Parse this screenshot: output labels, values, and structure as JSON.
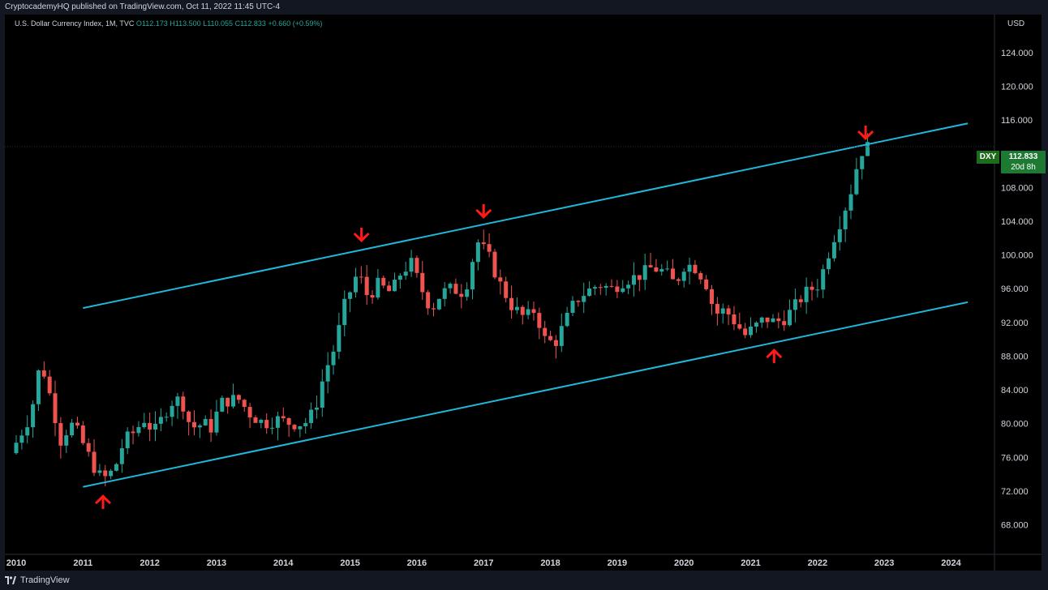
{
  "header": {
    "publisher_line": "CryptocademyHQ published on TradingView.com, Oct 11, 2022 11:45 UTC-4"
  },
  "legend": {
    "symbol": "U.S. Dollar Currency Index, 1M, TVC",
    "open": "O112.173",
    "high": "H113.500",
    "low": "L110.055",
    "close": "C112.833",
    "change": "+0.660 (+0.59%)"
  },
  "price_axis": {
    "currency": "USD"
  },
  "last_price": {
    "symbol": "DXY",
    "price": "112.833",
    "countdown": "20d 8h"
  },
  "footer": {
    "brand": "TradingView"
  },
  "colors": {
    "up": "#26a69a",
    "down": "#ef5350",
    "channel": "#1fb8d8",
    "arrow": "#ff1a1a",
    "axis_text": "#d1d4dc"
  },
  "chart_data": {
    "type": "candlestick",
    "title": "U.S. Dollar Currency Index, 1M, TVC",
    "x_tick_labels": [
      "2010",
      "2011",
      "2012",
      "2013",
      "2014",
      "2015",
      "2016",
      "2017",
      "2018",
      "2019",
      "2020",
      "2021",
      "2022",
      "2023",
      "2024"
    ],
    "y_tick_labels": [
      "68.000",
      "72.000",
      "76.000",
      "80.000",
      "84.000",
      "88.000",
      "92.000",
      "96.000",
      "100.000",
      "104.000",
      "108.000",
      "112.000",
      "116.000",
      "120.000",
      "124.000"
    ],
    "ylim": [
      64.5,
      128.5
    ],
    "x_range": [
      2009.83,
      2024.65
    ],
    "series_path": [
      [
        2010.0,
        76.5
      ],
      [
        2010.3,
        81
      ],
      [
        2010.45,
        87.5
      ],
      [
        2010.6,
        83
      ],
      [
        2010.75,
        78
      ],
      [
        2010.9,
        80
      ],
      [
        2011.0,
        79
      ],
      [
        2011.15,
        76.5
      ],
      [
        2011.3,
        74
      ],
      [
        2011.4,
        73.5
      ],
      [
        2011.55,
        74.5
      ],
      [
        2011.7,
        78
      ],
      [
        2011.85,
        79
      ],
      [
        2012.0,
        80.5
      ],
      [
        2012.15,
        79
      ],
      [
        2012.4,
        82.5
      ],
      [
        2012.55,
        83
      ],
      [
        2012.7,
        79.5
      ],
      [
        2012.9,
        80
      ],
      [
        2013.0,
        79.5
      ],
      [
        2013.15,
        82.5
      ],
      [
        2013.4,
        83
      ],
      [
        2013.6,
        81
      ],
      [
        2013.8,
        80
      ],
      [
        2014.0,
        80.5
      ],
      [
        2014.2,
        80
      ],
      [
        2014.4,
        80
      ],
      [
        2014.55,
        81.5
      ],
      [
        2014.7,
        86
      ],
      [
        2014.85,
        89
      ],
      [
        2015.0,
        94
      ],
      [
        2015.2,
        98
      ],
      [
        2015.35,
        95
      ],
      [
        2015.5,
        96.5
      ],
      [
        2015.7,
        95.5
      ],
      [
        2015.85,
        98
      ],
      [
        2016.0,
        99
      ],
      [
        2016.15,
        96
      ],
      [
        2016.3,
        93.5
      ],
      [
        2016.45,
        95.5
      ],
      [
        2016.6,
        96
      ],
      [
        2016.8,
        95.5
      ],
      [
        2016.9,
        99
      ],
      [
        2017.0,
        101.5
      ],
      [
        2017.15,
        100
      ],
      [
        2017.3,
        97
      ],
      [
        2017.5,
        94
      ],
      [
        2017.7,
        92.5
      ],
      [
        2017.85,
        93.5
      ],
      [
        2018.0,
        90
      ],
      [
        2018.15,
        89.5
      ],
      [
        2018.3,
        92
      ],
      [
        2018.45,
        94.5
      ],
      [
        2018.6,
        95.5
      ],
      [
        2018.8,
        96.5
      ],
      [
        2019.0,
        96
      ],
      [
        2019.2,
        97
      ],
      [
        2019.4,
        97.5
      ],
      [
        2019.6,
        98.5
      ],
      [
        2019.8,
        98
      ],
      [
        2019.95,
        96.5
      ],
      [
        2020.1,
        99
      ],
      [
        2020.25,
        98.5
      ],
      [
        2020.4,
        97
      ],
      [
        2020.55,
        93
      ],
      [
        2020.7,
        93.5
      ],
      [
        2020.85,
        92
      ],
      [
        2021.0,
        90.5
      ],
      [
        2021.15,
        91.5
      ],
      [
        2021.3,
        92.5
      ],
      [
        2021.45,
        92
      ],
      [
        2021.6,
        92.5
      ],
      [
        2021.75,
        94
      ],
      [
        2021.9,
        95.5
      ],
      [
        2022.1,
        96.5
      ],
      [
        2022.3,
        101.5
      ],
      [
        2022.45,
        104.5
      ],
      [
        2022.6,
        108
      ],
      [
        2022.7,
        111.5
      ],
      [
        2022.78,
        112.8
      ]
    ],
    "channel": {
      "upper": [
        [
          2011.0,
          93.7
        ],
        [
          2024.25,
          115.6
        ]
      ],
      "lower": [
        [
          2011.0,
          72.5
        ],
        [
          2024.25,
          94.4
        ]
      ]
    },
    "arrows": [
      {
        "dir": "down",
        "x": 2015.17,
        "y": 101.5
      },
      {
        "dir": "down",
        "x": 2017.0,
        "y": 104.3
      },
      {
        "dir": "down",
        "x": 2022.72,
        "y": 113.6
      },
      {
        "dir": "up",
        "x": 2011.3,
        "y": 71.6
      },
      {
        "dir": "up",
        "x": 2021.35,
        "y": 88.9
      }
    ],
    "last_price": 112.833,
    "grid": false
  }
}
